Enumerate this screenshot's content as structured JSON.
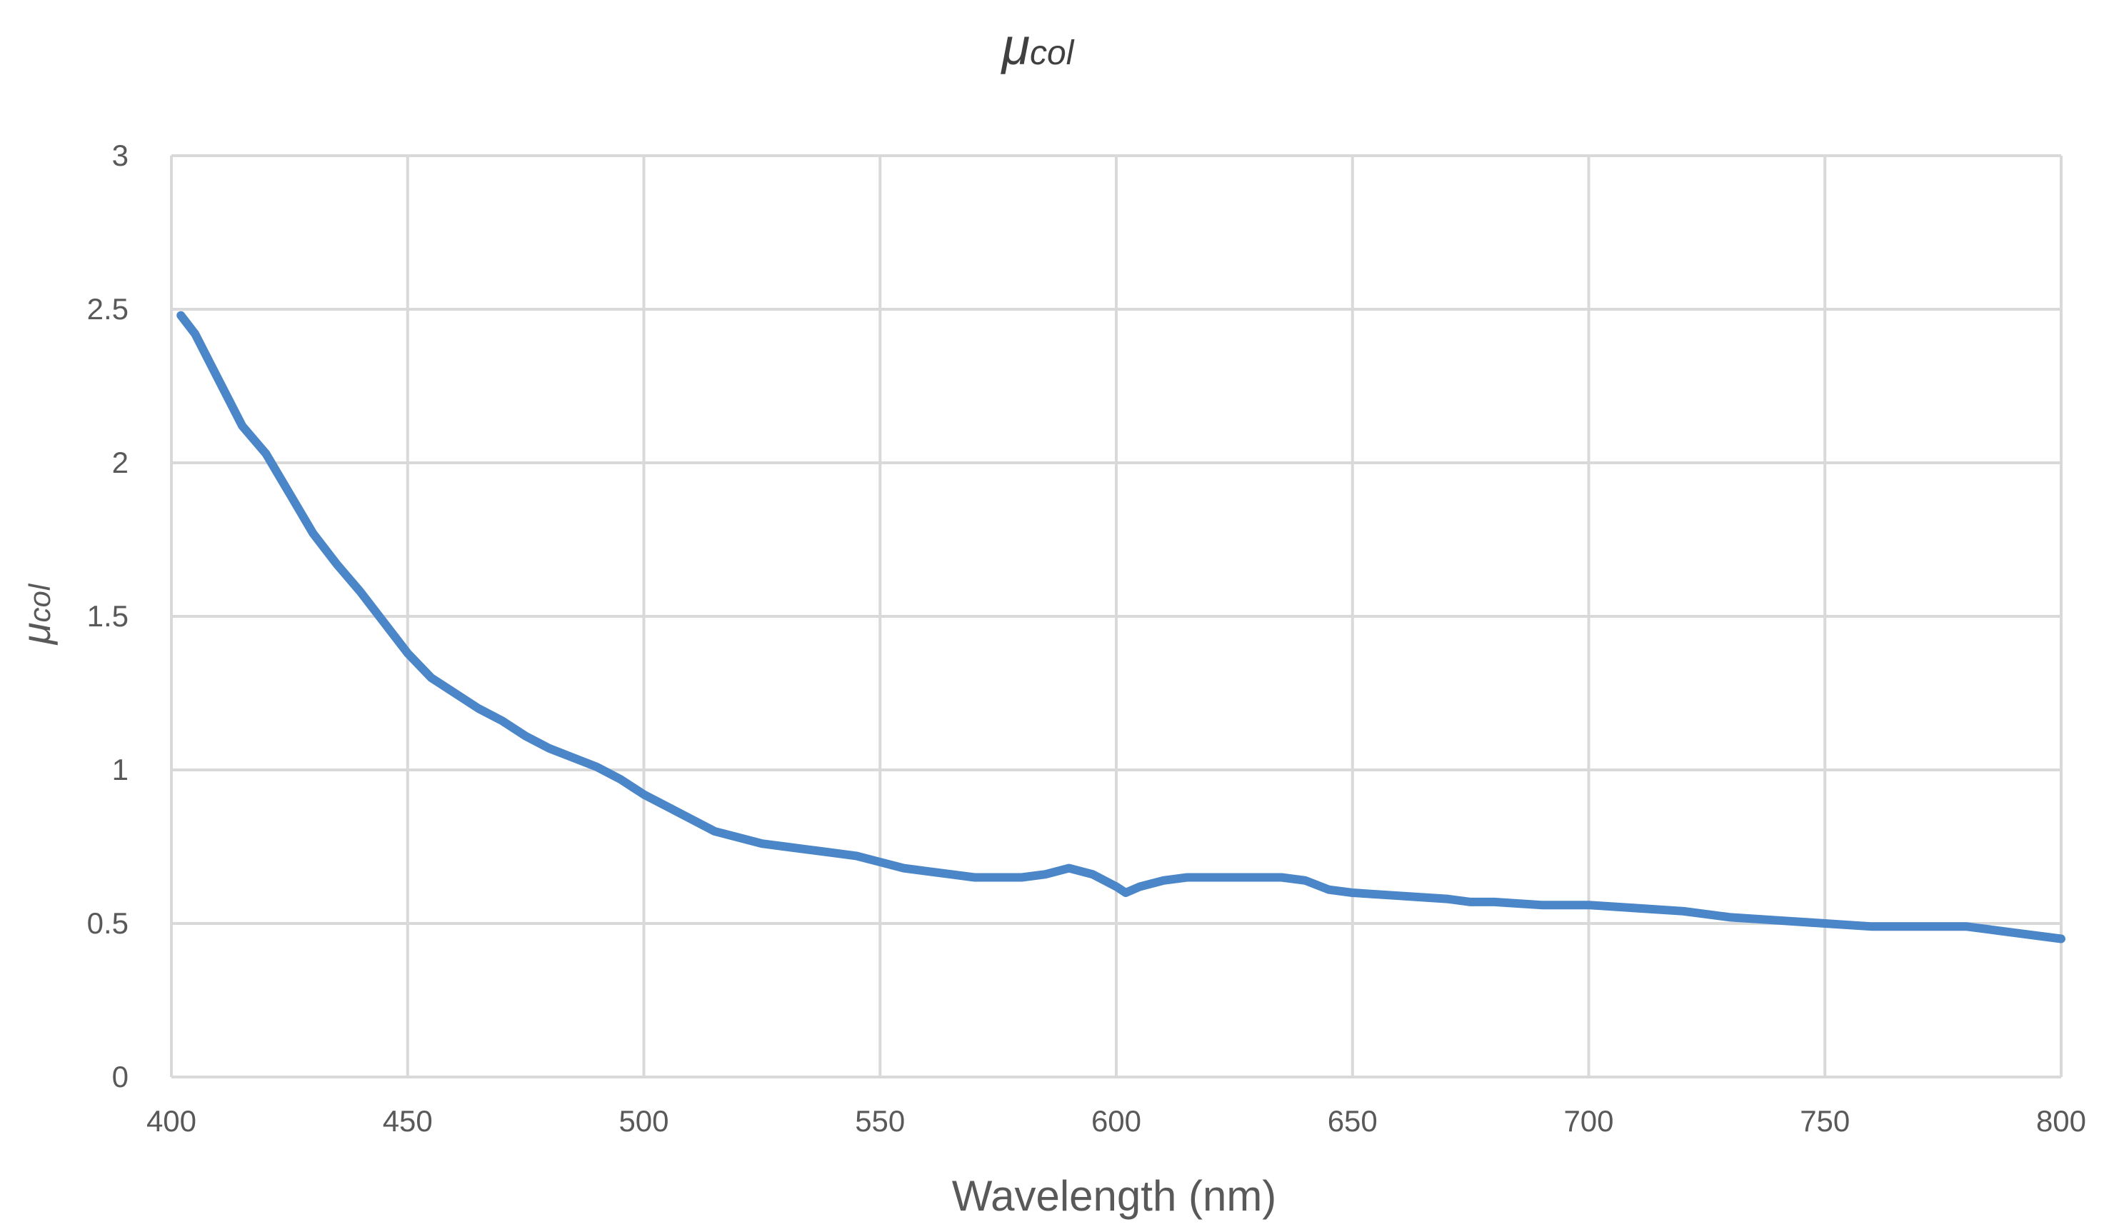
{
  "colors": {
    "series": "#4a86c8",
    "grid": "#d9d9d9",
    "text": "#595959"
  },
  "chart_data": {
    "type": "line",
    "title": {
      "main": "μ",
      "sub": "col"
    },
    "ylabel": {
      "main": "μ",
      "sub": "col"
    },
    "xlabel": "Wavelength (nm)",
    "xlim": [
      400,
      800
    ],
    "ylim": [
      0,
      3
    ],
    "xticks": [
      "400",
      "450",
      "500",
      "550",
      "600",
      "650",
      "700",
      "750",
      "800"
    ],
    "yticks": [
      "0",
      "0.5",
      "1",
      "1.5",
      "2",
      "2.5",
      "3"
    ],
    "grid": true,
    "legend": "none",
    "series": [
      {
        "x": [
          402,
          405,
          410,
          415,
          420,
          425,
          430,
          435,
          440,
          445,
          450,
          455,
          460,
          465,
          470,
          475,
          480,
          485,
          490,
          495,
          500,
          505,
          510,
          515,
          520,
          525,
          530,
          535,
          540,
          545,
          550,
          555,
          560,
          565,
          570,
          575,
          580,
          585,
          590,
          595,
          600,
          602,
          605,
          610,
          615,
          620,
          625,
          630,
          635,
          640,
          645,
          650,
          660,
          670,
          675,
          680,
          690,
          700,
          710,
          720,
          730,
          740,
          750,
          760,
          770,
          780,
          785,
          790,
          800
        ],
        "y": [
          2.48,
          2.42,
          2.27,
          2.12,
          2.03,
          1.9,
          1.77,
          1.67,
          1.58,
          1.48,
          1.38,
          1.3,
          1.25,
          1.2,
          1.16,
          1.11,
          1.07,
          1.04,
          1.01,
          0.97,
          0.92,
          0.88,
          0.84,
          0.8,
          0.78,
          0.76,
          0.75,
          0.74,
          0.73,
          0.72,
          0.7,
          0.68,
          0.67,
          0.66,
          0.65,
          0.65,
          0.65,
          0.66,
          0.68,
          0.66,
          0.62,
          0.6,
          0.62,
          0.64,
          0.65,
          0.65,
          0.65,
          0.65,
          0.65,
          0.64,
          0.61,
          0.6,
          0.59,
          0.58,
          0.57,
          0.57,
          0.56,
          0.56,
          0.55,
          0.54,
          0.52,
          0.51,
          0.5,
          0.49,
          0.49,
          0.49,
          0.48,
          0.47,
          0.45
        ]
      }
    ]
  }
}
